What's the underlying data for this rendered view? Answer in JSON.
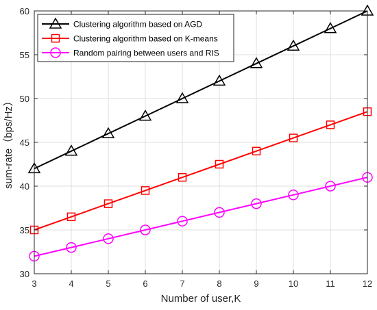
{
  "chart_data": {
    "type": "line",
    "xlabel": "Number of user,K",
    "ylabel": "sum-rate（bps/Hz）",
    "xlim": [
      3,
      12
    ],
    "ylim": [
      30,
      60
    ],
    "x": [
      3,
      4,
      5,
      6,
      7,
      8,
      9,
      10,
      11,
      12
    ],
    "xticks": [
      3,
      4,
      5,
      6,
      7,
      8,
      9,
      10,
      11,
      12
    ],
    "yticks": [
      30,
      35,
      40,
      45,
      50,
      55,
      60
    ],
    "grid": true,
    "legend": "top-left",
    "series": [
      {
        "name": "Clustering algorithm based on AGD",
        "color": "#000000",
        "marker": "triangle",
        "values": [
          42,
          44,
          46,
          48,
          50,
          52,
          54,
          56,
          58,
          60
        ]
      },
      {
        "name": "Clustering algorithm based on K-means",
        "color": "#ff0000",
        "marker": "square",
        "values": [
          35,
          36.5,
          38,
          39.5,
          41,
          42.5,
          44,
          45.5,
          47,
          48.5
        ]
      },
      {
        "name": "Random pairing between users and RIS",
        "color": "#ff00ff",
        "marker": "circle",
        "values": [
          32,
          33,
          34,
          35,
          36,
          37,
          38,
          39,
          40,
          41
        ]
      }
    ]
  }
}
